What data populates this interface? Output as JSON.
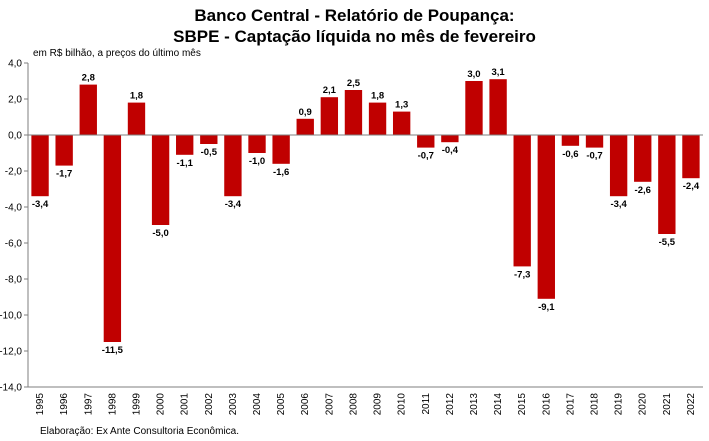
{
  "chart_data": {
    "type": "bar",
    "title": "Banco Central - Relatório de Poupança:",
    "subtitle": "SBPE - Captação líquida no mês de fevereiro",
    "ylabel": "em R$ bilhão, a preços do último mês",
    "source": "Elaboração: Ex Ante Consultoria Econômica.",
    "categories": [
      "1995",
      "1996",
      "1997",
      "1998",
      "1999",
      "2000",
      "2001",
      "2002",
      "2003",
      "2004",
      "2005",
      "2006",
      "2007",
      "2008",
      "2009",
      "2010",
      "2011",
      "2012",
      "2013",
      "2014",
      "2015",
      "2016",
      "2017",
      "2018",
      "2019",
      "2020",
      "2021",
      "2022"
    ],
    "values": [
      -3.4,
      -1.7,
      2.8,
      -11.5,
      1.8,
      -5.0,
      -1.1,
      -0.5,
      -3.4,
      -1.0,
      -1.6,
      0.9,
      2.1,
      2.5,
      1.8,
      1.3,
      -0.7,
      -0.4,
      3.0,
      3.1,
      -7.3,
      -9.1,
      -0.6,
      -0.7,
      -3.4,
      -2.6,
      -5.5,
      -2.4
    ],
    "value_labels": [
      "-3,4",
      "-1,7",
      "2,8",
      "-11,5",
      "1,8",
      "-5,0",
      "-1,1",
      "-0,5",
      "-3,4",
      "-1,0",
      "-1,6",
      "0,9",
      "2,1",
      "2,5",
      "1,8",
      "1,3",
      "-0,7",
      "-0,4",
      "3,0",
      "3,1",
      "-7,3",
      "-9,1",
      "-0,6",
      "-0,7",
      "-3,4",
      "-2,6",
      "-5,5",
      "-2,4"
    ],
    "yticks": [
      4,
      2,
      0,
      -2,
      -4,
      -6,
      -8,
      -10,
      -12,
      -14
    ],
    "ytick_labels": [
      "4,0",
      "2,0",
      "0,0",
      "-2,0",
      "-4,0",
      "-6,0",
      "-8,0",
      "-10,0",
      "-12,0",
      "-14,0"
    ],
    "ylim": [
      -14,
      4
    ],
    "bar_color": "#C00000",
    "grid": false,
    "legend": "none"
  }
}
